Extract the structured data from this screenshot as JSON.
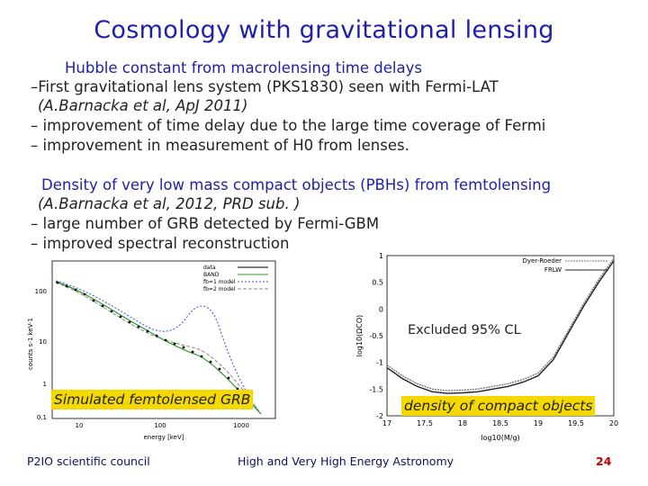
{
  "title": "Cosmology with gravitational lensing",
  "section1": {
    "heading": "Hubble constant from macrolensing time delays",
    "item1": "–First gravitational lens system (PKS1830) seen with Fermi-LAT",
    "ref": "(A.Barnacka et al, ApJ 2011)",
    "item2": "– improvement of time delay due to the large time coverage of Fermi",
    "item3": "– improvement in measurement of H0 from lenses."
  },
  "section2": {
    "heading": "Density of very low mass compact objects (PBHs) from femtolensing",
    "ref": "(A.Barnacka et al, 2012, PRD sub. )",
    "item1": "– large number of GRB detected by Fermi-GBM",
    "item2": "– improved spectral reconstruction"
  },
  "left_plot": {
    "label": "Simulated femtolensed GRB",
    "xlabel": "energy [keV]",
    "ylabel": "counts s-1 keV-1",
    "y_ticks": [
      "100",
      "10",
      "1",
      "0.1"
    ],
    "x_ticks": [
      "10",
      "100",
      "1000"
    ],
    "legend": [
      "data",
      "BAND",
      "fb=1 model",
      "fb=2 model"
    ],
    "colors": {
      "data": "#000000",
      "band": "#2a9a2a",
      "model1": "#3050e0",
      "model2": "#8a8a8a"
    }
  },
  "right_plot": {
    "note": "Excluded 95% CL",
    "label": "density of compact objects",
    "xlabel": "log10(M/g)",
    "ylabel": "log10(ΩCO)",
    "y_ticks": [
      "1",
      "0.5",
      "0",
      "-0.5",
      "-1",
      "-1.5",
      "-2"
    ],
    "x_ticks": [
      "17",
      "17.5",
      "18",
      "18.5",
      "19",
      "19.5",
      "20"
    ],
    "legend": [
      "Dyer-Roeder",
      "FRLW"
    ]
  },
  "chart_data": [
    {
      "type": "line",
      "title": "",
      "xlabel": "log10(M/g)",
      "ylabel": "log10(ΩCO)",
      "xlim": [
        17,
        20
      ],
      "ylim": [
        -2,
        1
      ],
      "series": [
        {
          "name": "Dyer-Roeder",
          "x": [
            17.0,
            17.2,
            17.4,
            17.6,
            17.8,
            18.0,
            18.2,
            18.4,
            18.6,
            18.8,
            19.0,
            19.2,
            19.4,
            19.6,
            19.8,
            20.0
          ],
          "values": [
            -1.05,
            -1.25,
            -1.4,
            -1.5,
            -1.53,
            -1.52,
            -1.5,
            -1.45,
            -1.4,
            -1.32,
            -1.2,
            -0.9,
            -0.4,
            0.1,
            0.55,
            0.95
          ]
        },
        {
          "name": "FRLW",
          "x": [
            17.0,
            17.2,
            17.4,
            17.6,
            17.8,
            18.0,
            18.2,
            18.4,
            18.6,
            18.8,
            19.0,
            19.2,
            19.4,
            19.6,
            19.8,
            20.0
          ],
          "values": [
            -1.1,
            -1.3,
            -1.45,
            -1.55,
            -1.58,
            -1.57,
            -1.55,
            -1.5,
            -1.45,
            -1.37,
            -1.25,
            -0.95,
            -0.45,
            0.05,
            0.5,
            0.9
          ]
        }
      ]
    }
  ],
  "footer": {
    "left": "P2IO scientific council",
    "center": "High and Very High Energy Astronomy",
    "page": "24"
  }
}
